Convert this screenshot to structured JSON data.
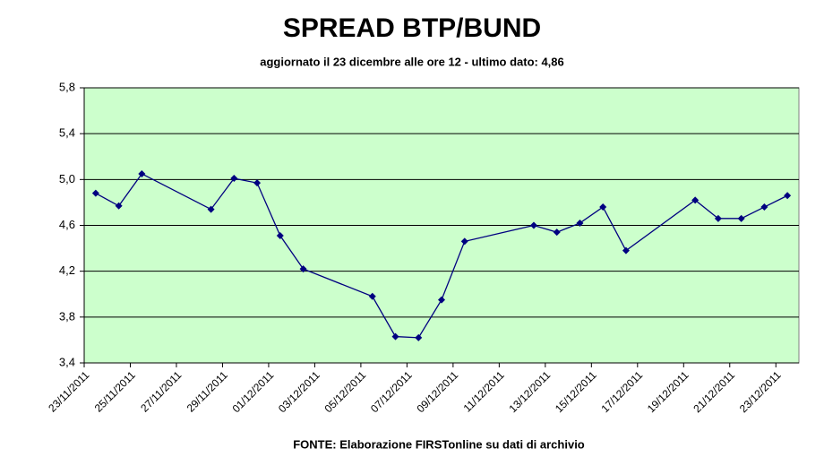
{
  "chart_data": {
    "type": "line",
    "title": "SPREAD BTP/BUND",
    "subtitle": "aggiornato il 23 dicembre alle ore 12 - ultimo dato: 4,86",
    "source": "FONTE: Elaborazione FIRSTonline su dati di archivio",
    "x": [
      "23/11/2011",
      "24/11/2011",
      "25/11/2011",
      "28/11/2011",
      "29/11/2011",
      "30/11/2011",
      "01/12/2011",
      "02/12/2011",
      "05/12/2011",
      "06/12/2011",
      "07/12/2011",
      "08/12/2011",
      "09/12/2011",
      "12/12/2011",
      "13/12/2011",
      "14/12/2011",
      "15/12/2011",
      "16/12/2011",
      "19/12/2011",
      "20/12/2011",
      "21/12/2011",
      "22/12/2011",
      "23/12/2011"
    ],
    "values": [
      4.88,
      4.77,
      5.05,
      4.74,
      5.01,
      4.97,
      4.51,
      4.22,
      3.98,
      3.63,
      3.62,
      3.95,
      4.46,
      4.6,
      4.54,
      4.62,
      4.76,
      4.38,
      4.82,
      4.66,
      4.66,
      4.76,
      4.86
    ],
    "color": "#000080",
    "xlim": [
      "23/11/2011",
      "24/12/2011"
    ],
    "xticks": [
      "23/11/2011",
      "25/11/2011",
      "27/11/2011",
      "29/11/2011",
      "01/12/2011",
      "03/12/2011",
      "05/12/2011",
      "07/12/2011",
      "09/12/2011",
      "11/12/2011",
      "13/12/2011",
      "15/12/2011",
      "17/12/2011",
      "19/12/2011",
      "21/12/2011",
      "23/12/2011"
    ],
    "ylim": [
      3.4,
      5.8
    ],
    "yticks": [
      {
        "value": 3.4,
        "label": "3,4"
      },
      {
        "value": 3.8,
        "label": "3,8"
      },
      {
        "value": 4.2,
        "label": "4,2"
      },
      {
        "value": 4.6,
        "label": "4,6"
      },
      {
        "value": 5.0,
        "label": "5,0"
      },
      {
        "value": 5.4,
        "label": "5,4"
      },
      {
        "value": 5.8,
        "label": "5,8"
      }
    ],
    "grid": true,
    "plot_background": "#ccffcc"
  }
}
